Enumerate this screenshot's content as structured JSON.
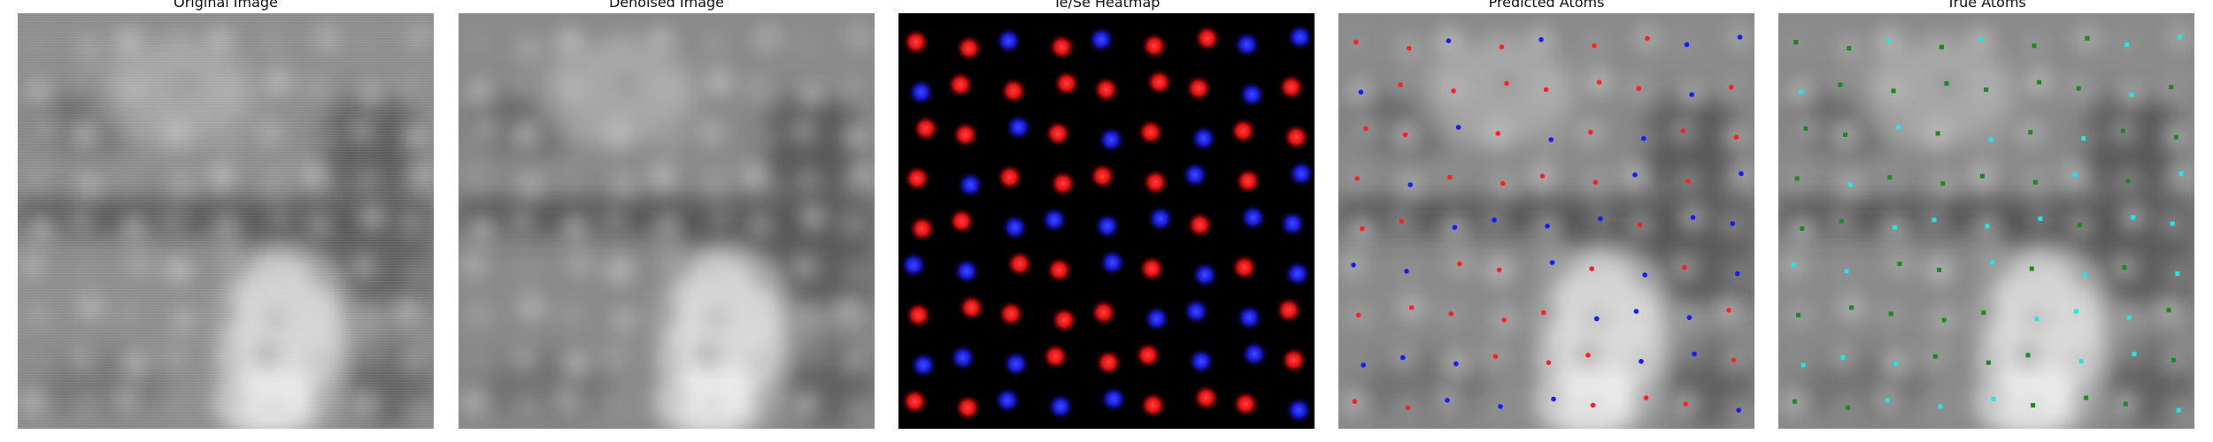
{
  "panels": [
    {
      "title": "Original Image"
    },
    {
      "title": "Denoised Image"
    },
    {
      "title": "Te/Se Heatmap"
    },
    {
      "title": "Predicted Atoms"
    },
    {
      "title": "True Atoms"
    }
  ],
  "colors": {
    "heat_red": "#ff1a1a",
    "heat_blue": "#2233ff",
    "pred_red": "#ff2020",
    "pred_blue": "#1a1aff",
    "true_green": "#1a8a1a",
    "true_cyan": "#22e6e6"
  }
}
